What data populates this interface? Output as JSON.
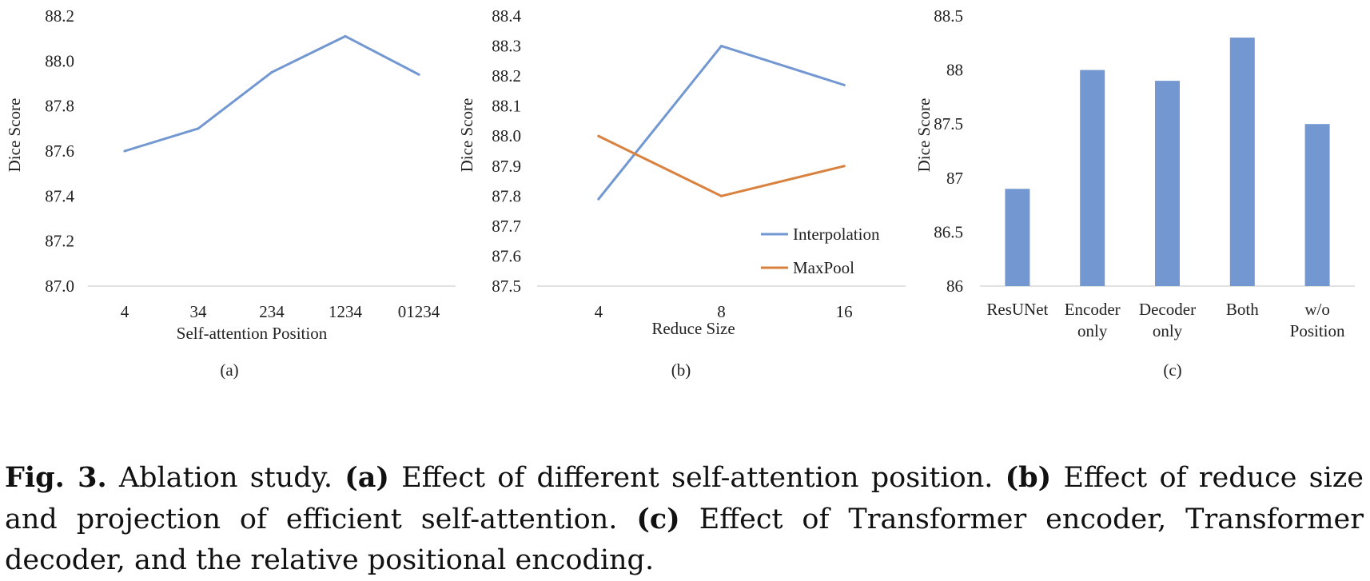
{
  "chart_data": [
    {
      "type": "line",
      "panel_label": "(a)",
      "xlabel": "Self-attention Position",
      "ylabel": "Dice Score",
      "categories": [
        "4",
        "34",
        "234",
        "1234",
        "01234"
      ],
      "series": [
        {
          "name": "Dice Score",
          "values": [
            87.6,
            87.7,
            87.95,
            88.11,
            87.94
          ],
          "color": "#7297d1"
        }
      ],
      "ylim": [
        87.0,
        88.2
      ],
      "yticks": [
        "87.0",
        "87.2",
        "87.4",
        "87.6",
        "87.8",
        "88.0",
        "88.2"
      ],
      "legend": null
    },
    {
      "type": "line",
      "panel_label": "(b)",
      "xlabel": "Reduce Size",
      "ylabel": "Dice Score",
      "categories": [
        "4",
        "8",
        "16"
      ],
      "series": [
        {
          "name": "Interpolation",
          "values": [
            87.79,
            88.3,
            88.17
          ],
          "color": "#7297d1"
        },
        {
          "name": "MaxPool",
          "values": [
            88.0,
            87.8,
            87.9
          ],
          "color": "#d9813f"
        }
      ],
      "ylim": [
        87.5,
        88.4
      ],
      "yticks": [
        "87.5",
        "87.6",
        "87.7",
        "87.8",
        "87.9",
        "88.0",
        "88.1",
        "88.2",
        "88.3",
        "88.4"
      ],
      "legend": "bottom-right"
    },
    {
      "type": "bar",
      "panel_label": "(c)",
      "xlabel": "",
      "ylabel": "Dice Score",
      "categories": [
        [
          "ResUNet"
        ],
        [
          "Encoder",
          "only"
        ],
        [
          "Decoder",
          "only"
        ],
        [
          "Both"
        ],
        [
          "w/o",
          "Position"
        ]
      ],
      "series": [
        {
          "name": "Dice Score",
          "values": [
            86.9,
            88.0,
            87.9,
            88.3,
            87.5
          ],
          "color": "#7297d1"
        }
      ],
      "ylim": [
        86,
        88.5
      ],
      "yticks": [
        "86",
        "86.5",
        "87",
        "87.5",
        "88",
        "88.5"
      ],
      "legend": null
    }
  ],
  "caption": {
    "fig_label": "Fig. 3.",
    "intro": " Ablation study. ",
    "a_label": "(a)",
    "a_text": " Effect of different self-attention position. ",
    "b_label": "(b)",
    "b_text": " Effect of reduce size and projection of efficient self-attention. ",
    "c_label": "(c)",
    "c_text": " Effect of Transformer encoder, Transformer decoder, and the relative positional encoding."
  },
  "colors": {
    "blue": "#7297d1",
    "orange": "#d9813f",
    "axis": "#d9d9d9"
  }
}
